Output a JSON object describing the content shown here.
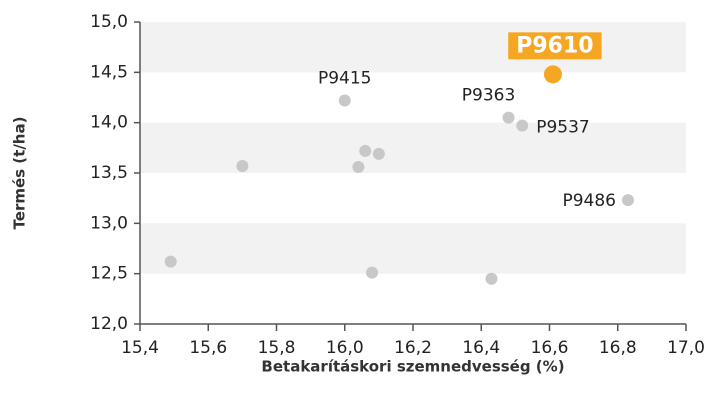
{
  "chart_data": {
    "type": "scatter",
    "xlabel": "Betakarításkori szemnedvesség (%)",
    "ylabel": "Termés (t/ha)",
    "x": [
      15.49,
      15.7,
      16.0,
      16.04,
      16.06,
      16.1,
      16.08,
      16.43,
      16.48,
      16.52,
      16.61,
      16.83
    ],
    "values": [
      12.62,
      13.57,
      14.22,
      13.56,
      13.72,
      13.69,
      12.51,
      12.45,
      14.05,
      13.97,
      14.48,
      13.23
    ],
    "labels": [
      null,
      null,
      "P9415",
      null,
      null,
      null,
      null,
      null,
      "P9363",
      "P9537",
      "P9610",
      "P9486"
    ],
    "color": "#c8c8c8",
    "point_colors": [
      "#c8c8c8",
      "#c8c8c8",
      "#c8c8c8",
      "#c8c8c8",
      "#c8c8c8",
      "#c8c8c8",
      "#c8c8c8",
      "#c8c8c8",
      "#c8c8c8",
      "#c8c8c8",
      "#f5a623",
      "#c8c8c8"
    ],
    "band_color": "#f2f2f2",
    "xlim": [
      15.4,
      17.0
    ],
    "xticks": [
      {
        "value": 15.4,
        "label": "15,4"
      },
      {
        "value": 15.6,
        "label": "15,6"
      },
      {
        "value": 15.8,
        "label": "15,8"
      },
      {
        "value": 16.0,
        "label": "16,0"
      },
      {
        "value": 16.2,
        "label": "16,2"
      },
      {
        "value": 16.4,
        "label": "16,4"
      },
      {
        "value": 16.6,
        "label": "16,6"
      },
      {
        "value": 16.8,
        "label": "16,8"
      },
      {
        "value": 17.0,
        "label": "17,0"
      }
    ],
    "ylim": [
      12.0,
      15.0
    ],
    "yticks": [
      {
        "value": 12.0,
        "label": "12,0"
      },
      {
        "value": 12.5,
        "label": "12,5"
      },
      {
        "value": 13.0,
        "label": "13,0"
      },
      {
        "value": 13.5,
        "label": "13,5"
      },
      {
        "value": 14.0,
        "label": "14,0"
      },
      {
        "value": 14.5,
        "label": "14,5"
      },
      {
        "value": 15.0,
        "label": "15,0"
      }
    ]
  }
}
